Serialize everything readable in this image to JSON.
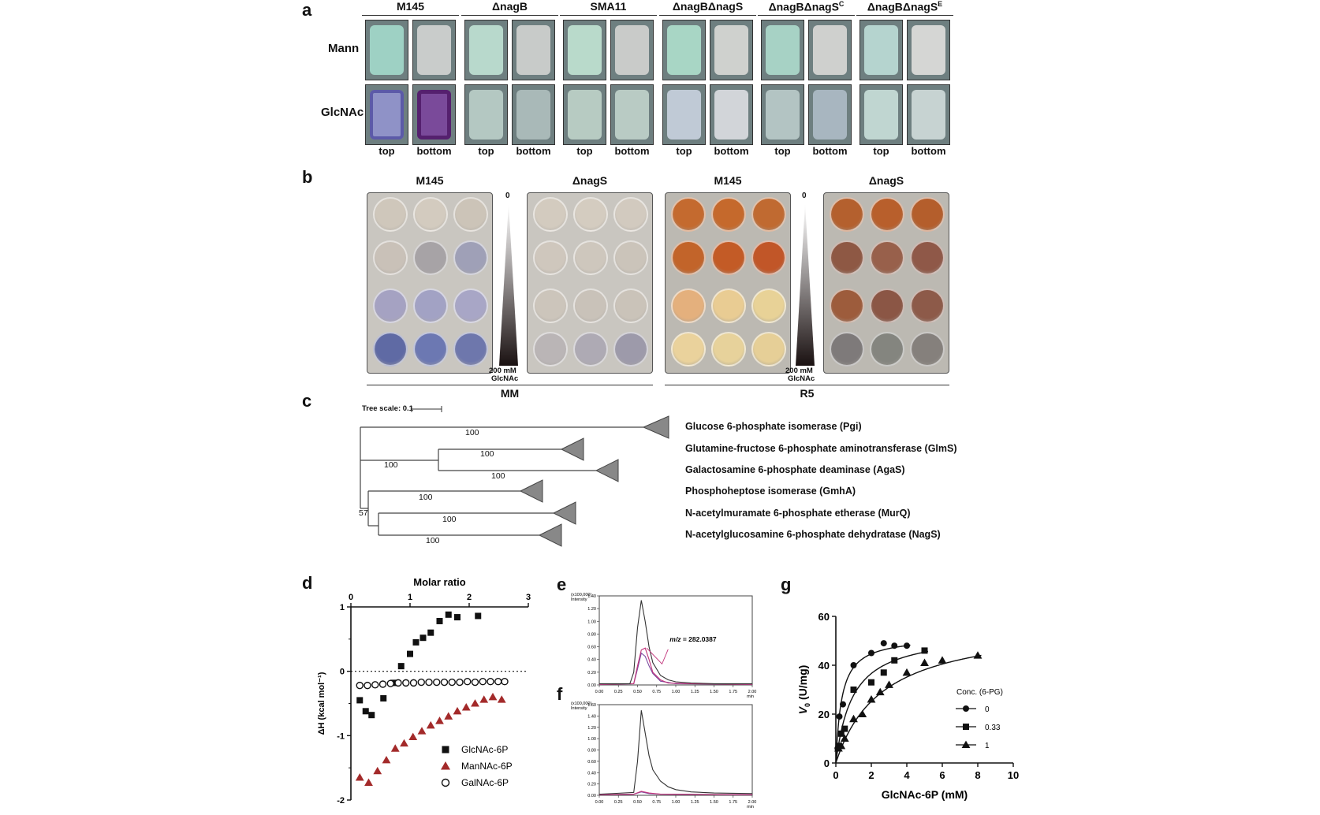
{
  "panel_a": {
    "letter": "a",
    "strains": [
      "M145",
      "ΔnagB",
      "SMA11",
      "ΔnagBΔnagS",
      "ΔnagBΔnagS",
      "ΔnagBΔnagS"
    ],
    "strain_superscripts": [
      "",
      "",
      "",
      "",
      "C",
      "E"
    ],
    "rows": [
      "Mann",
      "GlcNAc"
    ],
    "sublabels": [
      "top",
      "bottom"
    ]
  },
  "panel_b": {
    "letter": "b",
    "plate_titles": [
      "M145",
      "ΔnagS",
      "M145",
      "ΔnagS"
    ],
    "gradient_top": "0",
    "gradient_bottom_1": "200 mM",
    "gradient_bottom_2": "GlcNAc",
    "media": [
      "MM",
      "R5"
    ]
  },
  "panel_c": {
    "letter": "c",
    "tree_scale_label": "Tree scale: 0.1",
    "clades": [
      "Glucose 6-phosphate isomerase (Pgi)",
      "Glutamine-fructose 6-phosphate aminotransferase (GlmS)",
      "Galactosamine 6-phosphate deaminase (AgaS)",
      "Phosphoheptose isomerase (GmhA)",
      "N-acetylmuramate 6-phosphate etherase (MurQ)",
      "N-acetylglucosamine 6-phosphate dehydratase (NagS)"
    ],
    "bootstrap": [
      "100",
      "100",
      "100",
      "100",
      "100",
      "100",
      "100",
      "57"
    ]
  },
  "panel_d": {
    "letter": "d",
    "title": "Molar ratio",
    "x_ticks": [
      "0",
      "1",
      "2",
      "3"
    ],
    "y_label": "ΔH (kcal mol⁻¹)",
    "y_ticks": [
      "1",
      "0",
      "-1",
      "-2"
    ],
    "legend": [
      "GlcNAc-6P",
      "ManNAc-6P",
      "GalNAc-6P"
    ]
  },
  "panel_e": {
    "letter": "e",
    "y_unit_1": "(x100,000)",
    "y_unit_2": "Intensity",
    "annotation_prefix": "m/z",
    "annotation_value": " = 282.0387",
    "y_ticks": [
      "1.40",
      "1.20",
      "1.00",
      "0.80",
      "0.60",
      "0.40",
      "0.20",
      "0.00"
    ],
    "x_ticks": [
      "0.00",
      "0.25",
      "0.50",
      "0.75",
      "1.00",
      "1.25",
      "1.50",
      "1.75",
      "2.00"
    ],
    "x_unit": "min"
  },
  "panel_f": {
    "letter": "f",
    "y_unit_1": "(x100,000)",
    "y_unit_2": "Intensity",
    "y_ticks": [
      "1.60",
      "1.40",
      "1.20",
      "1.00",
      "0.80",
      "0.60",
      "0.40",
      "0.20",
      "0.00"
    ],
    "x_ticks": [
      "0.00",
      "0.25",
      "0.50",
      "0.75",
      "1.00",
      "1.25",
      "1.50",
      "1.75",
      "2.00"
    ],
    "x_unit": "min"
  },
  "panel_g": {
    "letter": "g",
    "legend_title": "Conc. (6-PG)",
    "legend": [
      "0",
      "0.33",
      "1"
    ],
    "x_label": "GlcNAc-6P (mM)",
    "y_label_main": "V",
    "y_label_sub": "0",
    "y_label_rest": " (U/mg)",
    "x_ticks": [
      "0",
      "2",
      "4",
      "6",
      "8",
      "10"
    ],
    "y_ticks": [
      "0",
      "20",
      "40",
      "60"
    ]
  },
  "colors": {
    "black": "#111111",
    "manNAc": "#a32a2a",
    "trace_black": "#333333",
    "trace_pink": "#c2337a",
    "trace_purple": "#7a4aa0"
  },
  "chart_data": [
    {
      "type": "scatter",
      "panel": "d",
      "title": "Molar ratio",
      "xlabel": "",
      "ylabel": "ΔH (kcal mol⁻¹)",
      "xlim": [
        0,
        3
      ],
      "ylim": [
        -2,
        1
      ],
      "series": [
        {
          "name": "GlcNAc-6P",
          "marker": "square",
          "x": [
            0.15,
            0.25,
            0.35,
            0.55,
            0.72,
            0.85,
            1.0,
            1.1,
            1.22,
            1.35,
            1.5,
            1.65,
            1.8,
            2.15
          ],
          "y": [
            -0.45,
            -0.62,
            -0.68,
            -0.42,
            -0.18,
            0.08,
            0.27,
            0.45,
            0.52,
            0.6,
            0.78,
            0.88,
            0.84,
            0.86
          ]
        },
        {
          "name": "ManNAc-6P",
          "marker": "triangle",
          "x": [
            0.15,
            0.3,
            0.45,
            0.6,
            0.75,
            0.9,
            1.05,
            1.2,
            1.35,
            1.5,
            1.65,
            1.8,
            1.95,
            2.1,
            2.25,
            2.4,
            2.55
          ],
          "y": [
            -1.65,
            -1.73,
            -1.55,
            -1.38,
            -1.2,
            -1.12,
            -1.02,
            -0.93,
            -0.84,
            -0.77,
            -0.7,
            -0.62,
            -0.56,
            -0.5,
            -0.44,
            -0.4,
            -0.44
          ]
        },
        {
          "name": "GalNAc-6P",
          "marker": "open-circle",
          "x": [
            0.15,
            0.28,
            0.41,
            0.54,
            0.67,
            0.8,
            0.93,
            1.06,
            1.19,
            1.32,
            1.45,
            1.58,
            1.71,
            1.84,
            1.97,
            2.1,
            2.23,
            2.36,
            2.49,
            2.6
          ],
          "y": [
            -0.22,
            -0.22,
            -0.21,
            -0.2,
            -0.19,
            -0.18,
            -0.18,
            -0.18,
            -0.17,
            -0.17,
            -0.17,
            -0.17,
            -0.17,
            -0.17,
            -0.16,
            -0.17,
            -0.16,
            -0.16,
            -0.16,
            -0.16
          ]
        }
      ],
      "zero_line": "dotted"
    },
    {
      "type": "line",
      "panel": "e",
      "xlabel": "min",
      "ylabel": "Intensity (x100,000)",
      "xlim": [
        0,
        2
      ],
      "ylim": [
        0,
        1.4
      ],
      "series": [
        {
          "color": "black",
          "x": [
            0,
            0.4,
            0.45,
            0.5,
            0.55,
            0.6,
            0.65,
            0.7,
            0.8,
            0.9,
            1.0,
            1.2,
            1.5,
            2.0
          ],
          "y": [
            0.02,
            0.02,
            0.2,
            0.9,
            1.33,
            1.0,
            0.6,
            0.35,
            0.15,
            0.08,
            0.05,
            0.03,
            0.02,
            0.02
          ]
        },
        {
          "color": "pink",
          "x": [
            0,
            0.45,
            0.5,
            0.55,
            0.6,
            0.65,
            0.7,
            0.8,
            0.9,
            1.2,
            2.0
          ],
          "y": [
            0.01,
            0.02,
            0.3,
            0.55,
            0.58,
            0.4,
            0.2,
            0.08,
            0.03,
            0.02,
            0.01
          ]
        },
        {
          "color": "purple",
          "x": [
            0,
            0.45,
            0.5,
            0.55,
            0.6,
            0.65,
            0.7,
            0.8,
            1.0,
            2.0
          ],
          "y": [
            0.01,
            0.02,
            0.25,
            0.5,
            0.45,
            0.3,
            0.18,
            0.06,
            0.02,
            0.01
          ]
        }
      ]
    },
    {
      "type": "line",
      "panel": "f",
      "xlabel": "min",
      "ylabel": "Intensity (x100,000)",
      "xlim": [
        0,
        2
      ],
      "ylim": [
        0,
        1.6
      ],
      "series": [
        {
          "color": "black",
          "x": [
            0,
            0.45,
            0.5,
            0.55,
            0.6,
            0.65,
            0.7,
            0.8,
            0.9,
            1.0,
            1.2,
            1.5,
            2.0
          ],
          "y": [
            0.02,
            0.05,
            0.6,
            1.5,
            1.1,
            0.7,
            0.45,
            0.25,
            0.15,
            0.1,
            0.06,
            0.04,
            0.03
          ]
        },
        {
          "color": "pink",
          "x": [
            0,
            0.45,
            0.55,
            0.65,
            0.8,
            2.0
          ],
          "y": [
            0.01,
            0.02,
            0.07,
            0.04,
            0.02,
            0.01
          ]
        },
        {
          "color": "purple",
          "x": [
            0,
            0.45,
            0.55,
            0.65,
            0.8,
            2.0
          ],
          "y": [
            0.01,
            0.02,
            0.06,
            0.03,
            0.02,
            0.01
          ]
        }
      ]
    },
    {
      "type": "scatter",
      "panel": "g",
      "xlabel": "GlcNAc-6P (mM)",
      "ylabel": "V0 (U/mg)",
      "xlim": [
        0,
        10
      ],
      "ylim": [
        0,
        60
      ],
      "legend_title": "Conc. (6-PG)",
      "series": [
        {
          "name": "0",
          "marker": "circle",
          "x": [
            0.1,
            0.2,
            0.4,
            1.0,
            2.0,
            2.7,
            3.3,
            4.0
          ],
          "y": [
            6,
            19,
            24,
            40,
            45,
            49,
            48,
            48
          ]
        },
        {
          "name": "0.33",
          "marker": "square",
          "x": [
            0.15,
            0.3,
            0.5,
            1.0,
            2.0,
            2.7,
            3.3,
            5.0
          ],
          "y": [
            7,
            12,
            14,
            30,
            33,
            37,
            42,
            46
          ]
        },
        {
          "name": "1",
          "marker": "triangle",
          "x": [
            0.15,
            0.3,
            0.5,
            1.0,
            1.5,
            2.0,
            2.5,
            3.0,
            4.0,
            5.0,
            6.0,
            8.0
          ],
          "y": [
            6,
            7,
            10,
            18,
            20,
            26,
            29,
            32,
            37,
            41,
            42,
            44
          ]
        }
      ],
      "fits": [
        {
          "name": "0",
          "vmax": 52,
          "km": 0.33
        },
        {
          "name": "0.33",
          "vmax": 54,
          "km": 0.95
        },
        {
          "name": "1",
          "vmax": 58,
          "km": 2.6
        }
      ]
    }
  ]
}
